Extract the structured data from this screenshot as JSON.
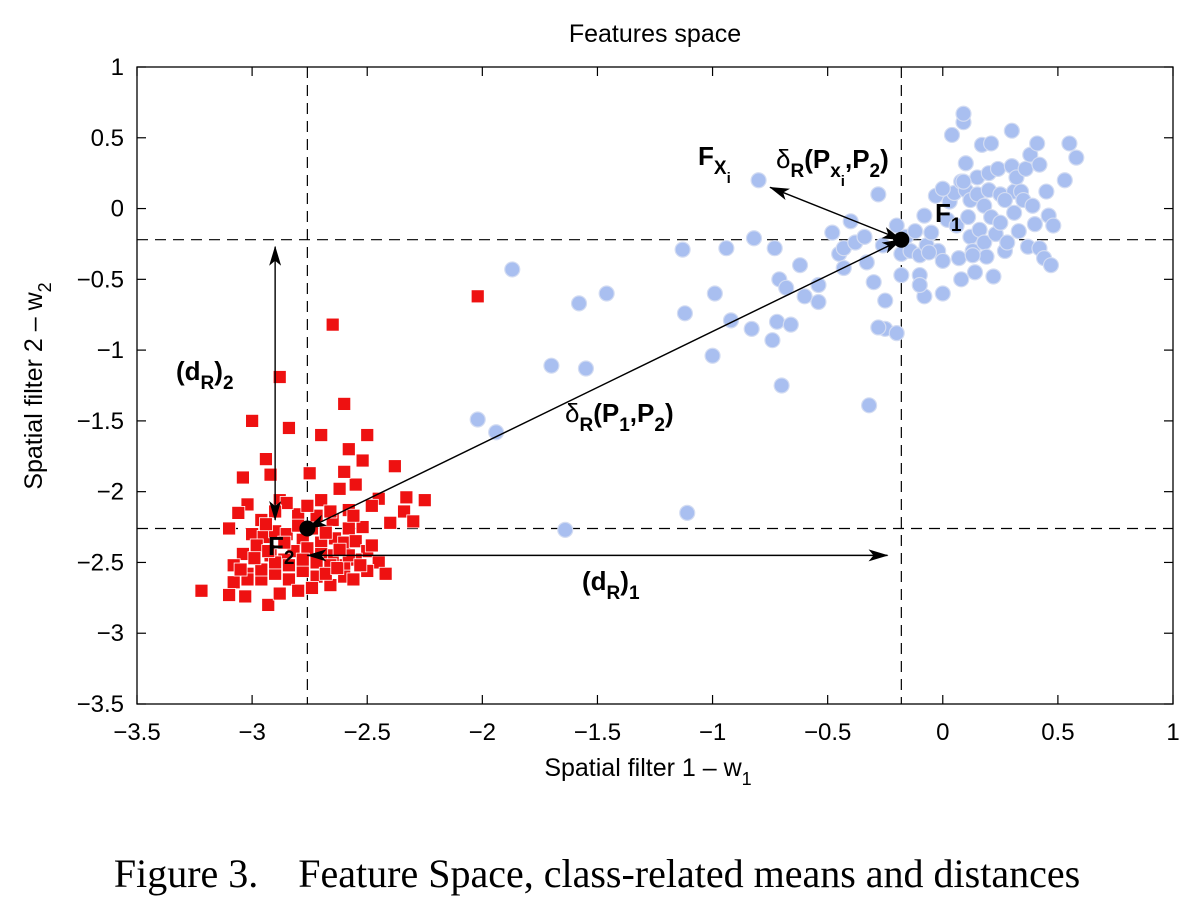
{
  "figure": {
    "caption_label": "Figure 3.",
    "caption_text": "Feature Space, class-related means and distances"
  },
  "chart_data": {
    "type": "scatter",
    "title": "Features space",
    "xlabel": "Spatial filter 1 – w",
    "xlabel_sub": "1",
    "ylabel": "Spatial filter 2 – w",
    "ylabel_sub": "2",
    "xlim": [
      -3.5,
      1
    ],
    "ylim": [
      -3.5,
      1
    ],
    "xticks": [
      -3.5,
      -3,
      -2.5,
      -2,
      -1.5,
      -1,
      -0.5,
      0,
      0.5,
      1
    ],
    "xtick_labels": [
      "−3.5",
      "−3",
      "−2.5",
      "−2",
      "−1.5",
      "−1",
      "−0.5",
      "0",
      "0.5",
      "1"
    ],
    "yticks": [
      1,
      0.5,
      0,
      -0.5,
      -1,
      -1.5,
      -2,
      -2.5,
      -3,
      -3.5
    ],
    "ytick_labels": [
      "1",
      "0.5",
      "0",
      "−0.5",
      "−1",
      "−1.5",
      "−2",
      "−2.5",
      "−3",
      "−3.5"
    ],
    "grid": false,
    "colors": {
      "class1": "#a9bff0",
      "class1_edge": "#d3dcf2",
      "class2": "#ee1111",
      "line": "#000000"
    },
    "series": [
      {
        "marker": "circle",
        "color": "#a9bff0",
        "points": [
          [
            -1.87,
            -0.43
          ],
          [
            -1.58,
            -0.67
          ],
          [
            -1.46,
            -0.6
          ],
          [
            -1.7,
            -1.11
          ],
          [
            -1.55,
            -1.13
          ],
          [
            -2.02,
            -1.49
          ],
          [
            -1.94,
            -1.58
          ],
          [
            -1.64,
            -2.27
          ],
          [
            -1.11,
            -2.15
          ],
          [
            -1.12,
            -0.74
          ],
          [
            -1.13,
            -0.29
          ],
          [
            -1.0,
            -1.04
          ],
          [
            -0.99,
            -0.6
          ],
          [
            -0.94,
            -0.28
          ],
          [
            -0.92,
            -0.79
          ],
          [
            -0.82,
            -0.21
          ],
          [
            -0.83,
            -0.85
          ],
          [
            -0.8,
            0.2
          ],
          [
            -0.74,
            -0.93
          ],
          [
            -0.73,
            -0.28
          ],
          [
            -0.71,
            -0.5
          ],
          [
            -0.72,
            -0.8
          ],
          [
            -0.68,
            -0.56
          ],
          [
            -0.66,
            -0.82
          ],
          [
            -0.62,
            -0.4
          ],
          [
            -0.7,
            -1.25
          ],
          [
            -0.54,
            -0.54
          ],
          [
            -0.54,
            -0.66
          ],
          [
            -0.48,
            -0.17
          ],
          [
            -0.45,
            -0.32
          ],
          [
            -0.43,
            -0.42
          ],
          [
            -0.43,
            -0.28
          ],
          [
            -0.4,
            -0.09
          ],
          [
            -0.38,
            -0.24
          ],
          [
            -0.34,
            -0.2
          ],
          [
            -0.33,
            -0.38
          ],
          [
            -0.3,
            -0.52
          ],
          [
            -0.28,
            0.1
          ],
          [
            -0.26,
            -0.26
          ],
          [
            -0.25,
            -0.65
          ],
          [
            -0.25,
            -0.85
          ],
          [
            -0.28,
            -0.84
          ],
          [
            -0.32,
            -1.39
          ],
          [
            -0.2,
            -0.88
          ],
          [
            -0.18,
            -0.32
          ],
          [
            -0.2,
            -0.12
          ],
          [
            -0.18,
            -0.47
          ],
          [
            -0.16,
            -0.2
          ],
          [
            -0.14,
            -0.3
          ],
          [
            -0.12,
            -0.16
          ],
          [
            -0.1,
            -0.47
          ],
          [
            -0.1,
            -0.33
          ],
          [
            -0.08,
            -0.05
          ],
          [
            -0.08,
            -0.62
          ],
          [
            -0.1,
            -0.54
          ],
          [
            -0.07,
            -0.26
          ],
          [
            -0.05,
            -0.17
          ],
          [
            -0.03,
            0.09
          ],
          [
            -0.02,
            -0.3
          ],
          [
            0.0,
            -0.37
          ],
          [
            0.0,
            -0.6
          ],
          [
            0.02,
            -0.08
          ],
          [
            0.03,
            0.05
          ],
          [
            0.04,
            0.52
          ],
          [
            0.05,
            0.11
          ],
          [
            0.06,
            -0.12
          ],
          [
            0.07,
            -0.35
          ],
          [
            0.08,
            0.19
          ],
          [
            0.08,
            -0.5
          ],
          [
            0.09,
            0.61
          ],
          [
            0.09,
            0.67
          ],
          [
            0.1,
            0.13
          ],
          [
            0.1,
            0.32
          ],
          [
            0.11,
            -0.06
          ],
          [
            0.12,
            -0.2
          ],
          [
            0.12,
            0.06
          ],
          [
            0.13,
            -0.3
          ],
          [
            0.14,
            -0.45
          ],
          [
            0.15,
            0.22
          ],
          [
            0.15,
            0.1
          ],
          [
            0.16,
            -0.15
          ],
          [
            0.17,
            0.45
          ],
          [
            0.18,
            0.02
          ],
          [
            0.18,
            -0.24
          ],
          [
            0.19,
            -0.34
          ],
          [
            0.2,
            0.25
          ],
          [
            0.2,
            0.13
          ],
          [
            0.21,
            0.46
          ],
          [
            0.21,
            -0.06
          ],
          [
            0.22,
            -0.48
          ],
          [
            0.23,
            -0.18
          ],
          [
            0.24,
            0.28
          ],
          [
            0.25,
            0.1
          ],
          [
            0.25,
            -0.1
          ],
          [
            0.27,
            -0.3
          ],
          [
            0.28,
            -0.24
          ],
          [
            0.3,
            0.55
          ],
          [
            0.3,
            0.3
          ],
          [
            0.31,
            0.12
          ],
          [
            0.31,
            -0.03
          ],
          [
            0.32,
            0.22
          ],
          [
            0.33,
            -0.16
          ],
          [
            0.34,
            0.12
          ],
          [
            0.35,
            0.06
          ],
          [
            0.36,
            0.28
          ],
          [
            0.37,
            -0.27
          ],
          [
            0.38,
            0.38
          ],
          [
            0.39,
            0.02
          ],
          [
            0.4,
            -0.11
          ],
          [
            0.41,
            0.46
          ],
          [
            0.42,
            0.31
          ],
          [
            0.42,
            -0.28
          ],
          [
            0.44,
            -0.35
          ],
          [
            0.45,
            0.12
          ],
          [
            0.46,
            -0.05
          ],
          [
            0.47,
            -0.4
          ],
          [
            0.48,
            -0.12
          ],
          [
            0.53,
            0.2
          ],
          [
            0.55,
            0.46
          ],
          [
            0.58,
            0.36
          ],
          [
            -0.6,
            -0.62
          ],
          [
            0.09,
            0.19
          ],
          [
            0.13,
            -0.33
          ],
          [
            0.27,
            0.06
          ],
          [
            -0.06,
            -0.31
          ],
          [
            0.0,
            0.14
          ]
        ]
      },
      {
        "marker": "square",
        "color": "#ee1111",
        "points": [
          [
            -2.02,
            -0.62
          ],
          [
            -2.65,
            -0.82
          ],
          [
            -2.88,
            -1.19
          ],
          [
            -3.0,
            -1.5
          ],
          [
            -2.84,
            -1.55
          ],
          [
            -2.7,
            -1.6
          ],
          [
            -2.6,
            -1.38
          ],
          [
            -2.58,
            -1.7
          ],
          [
            -2.55,
            -1.95
          ],
          [
            -2.5,
            -1.6
          ],
          [
            -2.52,
            -1.78
          ],
          [
            -2.38,
            -1.82
          ],
          [
            -2.94,
            -1.77
          ],
          [
            -2.92,
            -1.88
          ],
          [
            -2.75,
            -1.87
          ],
          [
            -2.88,
            -2.06
          ],
          [
            -3.04,
            -1.9
          ],
          [
            -2.6,
            -1.86
          ],
          [
            -2.62,
            -1.98
          ],
          [
            -2.7,
            -2.06
          ],
          [
            -2.33,
            -2.04
          ],
          [
            -2.25,
            -2.06
          ],
          [
            -2.45,
            -2.05
          ],
          [
            -2.58,
            -2.13
          ],
          [
            -2.48,
            -2.1
          ],
          [
            -2.34,
            -2.14
          ],
          [
            -2.3,
            -2.21
          ],
          [
            -2.4,
            -2.22
          ],
          [
            -2.52,
            -2.25
          ],
          [
            -2.58,
            -2.26
          ],
          [
            -2.65,
            -2.2
          ],
          [
            -2.72,
            -2.17
          ],
          [
            -2.8,
            -2.16
          ],
          [
            -2.85,
            -2.08
          ],
          [
            -2.9,
            -2.14
          ],
          [
            -2.96,
            -2.2
          ],
          [
            -3.02,
            -2.09
          ],
          [
            -3.06,
            -2.15
          ],
          [
            -3.1,
            -2.26
          ],
          [
            -3.0,
            -2.3
          ],
          [
            -2.95,
            -2.32
          ],
          [
            -2.9,
            -2.28
          ],
          [
            -2.85,
            -2.3
          ],
          [
            -2.78,
            -2.34
          ],
          [
            -2.7,
            -2.36
          ],
          [
            -2.64,
            -2.33
          ],
          [
            -2.6,
            -2.36
          ],
          [
            -2.55,
            -2.35
          ],
          [
            -2.5,
            -2.42
          ],
          [
            -2.45,
            -2.5
          ],
          [
            -2.42,
            -2.58
          ],
          [
            -2.5,
            -2.56
          ],
          [
            -2.55,
            -2.48
          ],
          [
            -2.6,
            -2.52
          ],
          [
            -2.65,
            -2.45
          ],
          [
            -2.7,
            -2.44
          ],
          [
            -2.76,
            -2.4
          ],
          [
            -2.82,
            -2.42
          ],
          [
            -2.86,
            -2.48
          ],
          [
            -2.92,
            -2.45
          ],
          [
            -2.98,
            -2.38
          ],
          [
            -3.04,
            -2.44
          ],
          [
            -3.08,
            -2.52
          ],
          [
            -3.02,
            -2.58
          ],
          [
            -2.96,
            -2.62
          ],
          [
            -2.9,
            -2.58
          ],
          [
            -2.84,
            -2.62
          ],
          [
            -2.78,
            -2.56
          ],
          [
            -2.72,
            -2.6
          ],
          [
            -2.66,
            -2.66
          ],
          [
            -2.6,
            -2.6
          ],
          [
            -2.56,
            -2.62
          ],
          [
            -2.66,
            -2.52
          ],
          [
            -2.72,
            -2.5
          ],
          [
            -2.78,
            -2.48
          ],
          [
            -2.84,
            -2.52
          ],
          [
            -2.9,
            -2.5
          ],
          [
            -2.96,
            -2.55
          ],
          [
            -3.02,
            -2.62
          ],
          [
            -3.08,
            -2.64
          ],
          [
            -3.22,
            -2.7
          ],
          [
            -3.1,
            -2.73
          ],
          [
            -3.03,
            -2.74
          ],
          [
            -2.93,
            -2.8
          ],
          [
            -2.88,
            -2.72
          ],
          [
            -2.8,
            -2.7
          ],
          [
            -2.74,
            -2.68
          ],
          [
            -2.68,
            -2.58
          ],
          [
            -2.63,
            -2.54
          ],
          [
            -2.58,
            -2.45
          ],
          [
            -2.53,
            -2.52
          ],
          [
            -2.48,
            -2.38
          ],
          [
            -2.62,
            -2.41
          ],
          [
            -2.68,
            -2.29
          ],
          [
            -2.74,
            -2.26
          ],
          [
            -2.8,
            -2.24
          ],
          [
            -2.86,
            -2.36
          ],
          [
            -2.93,
            -2.42
          ],
          [
            -2.99,
            -2.47
          ],
          [
            -3.05,
            -2.55
          ],
          [
            -2.94,
            -2.23
          ],
          [
            -2.76,
            -2.1
          ],
          [
            -2.66,
            -2.14
          ],
          [
            -2.56,
            -2.17
          ]
        ]
      }
    ],
    "means": [
      {
        "name": "F",
        "sub": "1",
        "x": -0.18,
        "y": -0.22
      },
      {
        "name": "F",
        "sub": "2",
        "x": -2.76,
        "y": -2.26
      }
    ],
    "reference_lines": {
      "x": [
        -0.18,
        -2.76
      ],
      "y": [
        -0.22,
        -2.26
      ]
    },
    "annotations": [
      {
        "label": "δ",
        "sub": "R",
        "rest": "(P",
        "sub2": "1",
        "mid": ",P",
        "sub3": "2",
        "end": ")"
      },
      {
        "label": "δ",
        "sub": "R",
        "rest": "(P",
        "sub2": "x",
        "subsub": "i",
        "mid": ",P",
        "sub3": "2",
        "end": ")"
      },
      {
        "label": "F",
        "sub": "X",
        "subsub": "i"
      },
      {
        "label": "(d",
        "sub": "R",
        "rest": ")",
        "sub2": "1"
      },
      {
        "label": "(d",
        "sub": "R",
        "rest": ")",
        "sub2": "2"
      }
    ],
    "arrows": [
      {
        "from": [
          -0.18,
          -0.22
        ],
        "to": [
          -2.76,
          -2.26
        ],
        "double": true
      },
      {
        "from": [
          -0.18,
          -0.22
        ],
        "to": [
          -0.75,
          0.15
        ],
        "double": true
      },
      {
        "from": [
          -2.76,
          -2.45
        ],
        "to": [
          -0.24,
          -2.45
        ],
        "double": true
      },
      {
        "from": [
          -2.9,
          -0.27
        ],
        "to": [
          -2.9,
          -2.2
        ],
        "double": true
      }
    ]
  }
}
